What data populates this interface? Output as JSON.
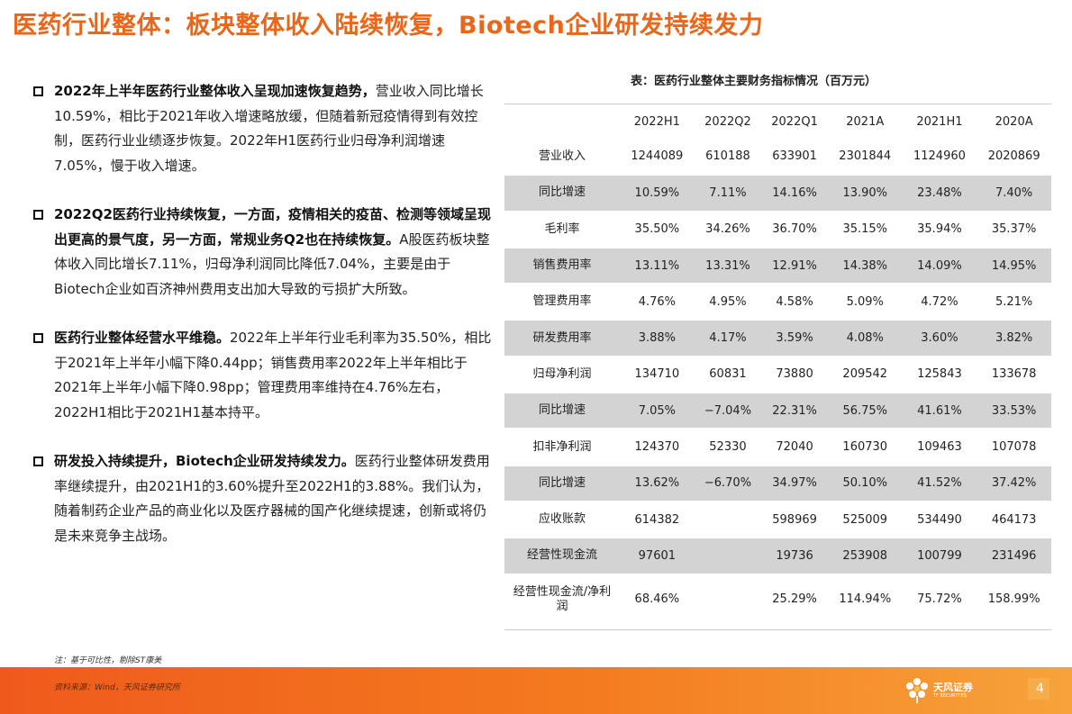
{
  "title": "医药行业整体：板块整体收入陆续恢复，Biotech企业研发持续发力",
  "bullets": [
    {
      "strong": "2022年上半年医药行业整体收入呈现加速恢复趋势，",
      "text": "营业收入同比增长10.59%，相比于2021年收入增速略放缓，但随着新冠疫情得到有效控制，医药行业业绩逐步恢复。2022年H1医药行业归母净利润增速7.05%，慢于收入增速。"
    },
    {
      "strong": "2022Q2医药行业持续恢复，一方面，疫情相关的疫苗、检测等领域呈现出更高的景气度，另一方面，常规业务Q2也在持续恢复。",
      "text": "A股医药板块整体收入同比增长7.11%，归母净利润同比降低7.04%，主要是由于Biotech企业如百济神州费用支出加大导致的亏损扩大所致。"
    },
    {
      "strong": "医药行业整体经营水平维稳。",
      "text": "2022年上半年行业毛利率为35.50%，相比于2021年上半年小幅下降0.44pp；销售费用率2022年上半年相比于2021年上半年小幅下降0.98pp；管理费用率维持在4.76%左右，2022H1相比于2021H1基本持平。"
    },
    {
      "strong": "研发投入持续提升，Biotech企业研发持续发力。",
      "text": "医药行业整体研发费用率继续提升，由2021H1的3.60%提升至2022H1的3.88%。我们认为，随着制药企业产品的商业化以及医疗器械的国产化继续提速，创新或将仍是未来竞争主战场。"
    }
  ],
  "table": {
    "caption": "表：医药行业整体主要财务指标情况（百万元）",
    "columns": [
      "2022H1",
      "2022Q2",
      "2022Q1",
      "2021A",
      "2021H1",
      "2020A"
    ],
    "rows": [
      {
        "label": "营业收入",
        "values": [
          "1244089",
          "610188",
          "633901",
          "2301844",
          "1124960",
          "2020869"
        ],
        "shaded": false
      },
      {
        "label": "同比增速",
        "values": [
          "10.59%",
          "7.11%",
          "14.16%",
          "13.90%",
          "23.48%",
          "7.40%"
        ],
        "shaded": true
      },
      {
        "label": "毛利率",
        "values": [
          "35.50%",
          "34.26%",
          "36.70%",
          "35.15%",
          "35.94%",
          "35.37%"
        ],
        "shaded": false
      },
      {
        "label": "销售费用率",
        "values": [
          "13.11%",
          "13.31%",
          "12.91%",
          "14.38%",
          "14.09%",
          "14.95%"
        ],
        "shaded": true
      },
      {
        "label": "管理费用率",
        "values": [
          "4.76%",
          "4.95%",
          "4.58%",
          "5.09%",
          "4.72%",
          "5.21%"
        ],
        "shaded": false
      },
      {
        "label": "研发费用率",
        "values": [
          "3.88%",
          "4.17%",
          "3.59%",
          "4.08%",
          "3.60%",
          "3.82%"
        ],
        "shaded": true
      },
      {
        "label": "归母净利润",
        "values": [
          "134710",
          "60831",
          "73880",
          "209542",
          "125843",
          "133678"
        ],
        "shaded": false
      },
      {
        "label": "同比增速",
        "values": [
          "7.05%",
          "−7.04%",
          "22.31%",
          "56.75%",
          "41.61%",
          "33.53%"
        ],
        "shaded": true
      },
      {
        "label": "扣非净利润",
        "values": [
          "124370",
          "52330",
          "72040",
          "160730",
          "109463",
          "107078"
        ],
        "shaded": false
      },
      {
        "label": "同比增速",
        "values": [
          "13.62%",
          "−6.70%",
          "34.97%",
          "50.10%",
          "41.52%",
          "37.42%"
        ],
        "shaded": true
      },
      {
        "label": "应收账款",
        "values": [
          "614382",
          "",
          "598969",
          "525009",
          "534490",
          "464173"
        ],
        "shaded": false
      },
      {
        "label": "经营性现金流",
        "values": [
          "97601",
          "",
          "19736",
          "253908",
          "100799",
          "231496"
        ],
        "shaded": true
      },
      {
        "label": "经营性现金流/净利润",
        "values": [
          "68.46%",
          "",
          "25.29%",
          "114.94%",
          "75.72%",
          "158.99%"
        ],
        "shaded": false
      }
    ]
  },
  "note": "注：基于可比性，剔除ST康美",
  "footer": {
    "source": "资料来源：Wind，天风证券研究所",
    "brand": "天风证券",
    "brand_en": "TF SECURITIES",
    "page": "4"
  },
  "colors": {
    "accent": "#e8671b",
    "footer_start": "#ef5a1c",
    "footer_end": "#f7a33a",
    "row_shade": "#d3d3d3"
  }
}
